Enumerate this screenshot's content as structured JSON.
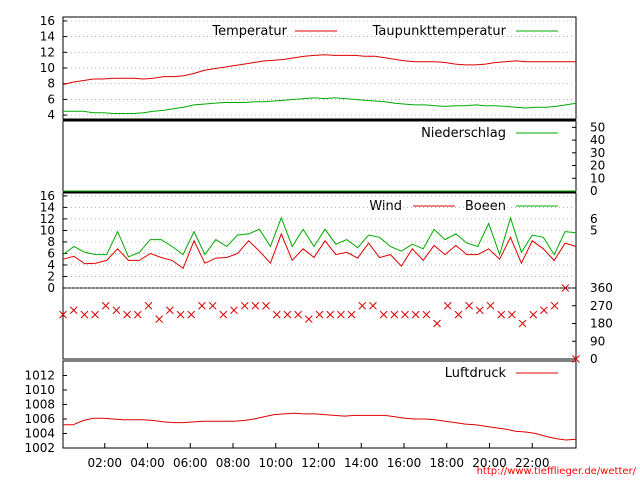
{
  "source_link": "http://www.tiefflieger.de/wetter/",
  "colors": {
    "red": "#dd0000",
    "green": "#00aa00",
    "axis": "#000000"
  },
  "chart_data": [
    {
      "type": "line",
      "series": [
        {
          "name": "Temperatur",
          "color": "#dd0000",
          "values": [
            7.9,
            8.2,
            8.4,
            8.6,
            8.6,
            8.7,
            8.7,
            8.7,
            8.6,
            8.7,
            8.9,
            8.9,
            9.0,
            9.3,
            9.7,
            9.9,
            10.1,
            10.3,
            10.5,
            10.7,
            10.9,
            11.0,
            11.1,
            11.3,
            11.5,
            11.6,
            11.7,
            11.6,
            11.6,
            11.6,
            11.5,
            11.5,
            11.3,
            11.1,
            10.9,
            10.8,
            10.8,
            10.8,
            10.7,
            10.5,
            10.4,
            10.4,
            10.5,
            10.7,
            10.8,
            10.9,
            10.8,
            10.8,
            10.8,
            10.8,
            10.8,
            10.8
          ]
        },
        {
          "name": "Taupunkttemperatur",
          "color": "#00aa00",
          "values": [
            4.5,
            4.5,
            4.5,
            4.3,
            4.3,
            4.2,
            4.2,
            4.2,
            4.3,
            4.5,
            4.6,
            4.8,
            5.0,
            5.3,
            5.4,
            5.5,
            5.6,
            5.6,
            5.6,
            5.7,
            5.7,
            5.8,
            5.9,
            6.0,
            6.1,
            6.2,
            6.1,
            6.2,
            6.1,
            6.0,
            5.9,
            5.8,
            5.7,
            5.5,
            5.4,
            5.3,
            5.3,
            5.2,
            5.1,
            5.2,
            5.2,
            5.3,
            5.2,
            5.2,
            5.1,
            5.0,
            4.9,
            5.0,
            5.0,
            5.1,
            5.3,
            5.5
          ]
        }
      ],
      "y_ticks": [
        4,
        6,
        8,
        10,
        12,
        14,
        16
      ],
      "ylim": [
        3.5,
        16.5
      ],
      "grid": true
    },
    {
      "type": "line",
      "series": [
        {
          "name": "Niederschlag",
          "color": "#00aa00",
          "values": [
            0,
            0,
            0,
            0,
            0,
            0,
            0,
            0,
            0,
            0,
            0,
            0,
            0,
            0,
            0,
            0,
            0,
            0,
            0,
            0,
            0,
            0,
            0,
            0,
            0,
            0,
            0,
            0,
            0,
            0,
            0,
            0,
            0,
            0,
            0,
            0,
            0,
            0,
            0,
            0,
            0,
            0,
            0,
            0,
            0,
            0,
            0,
            0,
            0,
            0,
            0,
            0
          ]
        }
      ],
      "y_ticks": [
        0,
        10,
        20,
        30,
        40,
        50
      ],
      "ylim": [
        0,
        55
      ],
      "y_axis_side": "right"
    },
    {
      "type": "line",
      "series": [
        {
          "name": "Wind",
          "color": "#dd0000",
          "values": [
            5.0,
            5.5,
            4.2,
            4.3,
            4.8,
            6.8,
            4.8,
            4.8,
            6.0,
            5.3,
            4.8,
            3.4,
            8.2,
            4.3,
            5.2,
            5.3,
            6.0,
            8.2,
            6.4,
            4.3,
            9.4,
            4.8,
            6.8,
            5.3,
            8.2,
            5.8,
            6.2,
            5.2,
            7.8,
            5.3,
            5.8,
            3.8,
            6.8,
            4.8,
            7.4,
            5.8,
            7.4,
            5.8,
            5.8,
            6.8,
            5.0,
            8.8,
            4.3,
            8.2,
            6.8,
            4.8,
            7.8,
            7.2
          ]
        },
        {
          "name": "Boeen",
          "color": "#00aa00",
          "values": [
            5.8,
            7.2,
            6.2,
            5.8,
            5.8,
            9.8,
            5.4,
            6.2,
            8.4,
            8.4,
            7.2,
            5.8,
            9.8,
            5.8,
            8.4,
            7.2,
            9.2,
            9.4,
            10.2,
            7.2,
            12.2,
            7.2,
            10.2,
            7.2,
            10.2,
            7.6,
            8.4,
            7.0,
            9.2,
            8.8,
            7.2,
            6.4,
            7.6,
            6.8,
            10.2,
            8.4,
            9.4,
            7.8,
            7.2,
            11.2,
            5.8,
            12.2,
            6.2,
            9.2,
            8.8,
            5.8,
            9.8,
            9.6
          ]
        }
      ],
      "y_ticks": [
        0,
        2,
        4,
        6,
        8,
        10,
        12,
        14,
        16
      ],
      "ylim": [
        0,
        16.5
      ],
      "right_ticks": [
        5,
        6
      ],
      "grid": true
    },
    {
      "type": "scatter",
      "series": [
        {
          "name": "",
          "color": "#dd0000",
          "values": [
            225,
            247,
            225,
            225,
            270,
            247,
            225,
            225,
            270,
            202,
            247,
            225,
            225,
            270,
            270,
            225,
            247,
            270,
            270,
            270,
            225,
            225,
            225,
            202,
            225,
            225,
            225,
            225,
            270,
            270,
            225,
            225,
            225,
            225,
            225,
            180,
            270,
            225,
            270,
            247,
            270,
            225,
            225,
            180,
            225,
            247,
            270,
            360,
            0
          ]
        }
      ],
      "y_ticks": [
        0,
        90,
        180,
        270,
        360
      ],
      "ylim": [
        0,
        360
      ],
      "y_axis_side": "right"
    },
    {
      "type": "line",
      "series": [
        {
          "name": "Luftdruck",
          "color": "#dd0000",
          "values": [
            1005.2,
            1005.2,
            1005.8,
            1006.1,
            1006.1,
            1006.0,
            1005.9,
            1005.9,
            1005.9,
            1005.8,
            1005.6,
            1005.5,
            1005.5,
            1005.6,
            1005.7,
            1005.7,
            1005.7,
            1005.7,
            1005.8,
            1006.0,
            1006.3,
            1006.6,
            1006.7,
            1006.8,
            1006.7,
            1006.7,
            1006.6,
            1006.5,
            1006.4,
            1006.5,
            1006.5,
            1006.5,
            1006.5,
            1006.3,
            1006.1,
            1006.0,
            1006.0,
            1005.9,
            1005.7,
            1005.5,
            1005.3,
            1005.2,
            1005.0,
            1004.8,
            1004.6,
            1004.3,
            1004.2,
            1004.0,
            1003.6,
            1003.3,
            1003.1,
            1003.2
          ]
        }
      ],
      "y_ticks": [
        1002,
        1004,
        1006,
        1008,
        1010,
        1012
      ],
      "ylim": [
        1002,
        1014
      ]
    }
  ],
  "x_tick_labels": [
    "02:00",
    "04:00",
    "06:00",
    "08:00",
    "10:00",
    "12:00",
    "14:00",
    "16:00",
    "18:00",
    "20:00",
    "22:00"
  ]
}
